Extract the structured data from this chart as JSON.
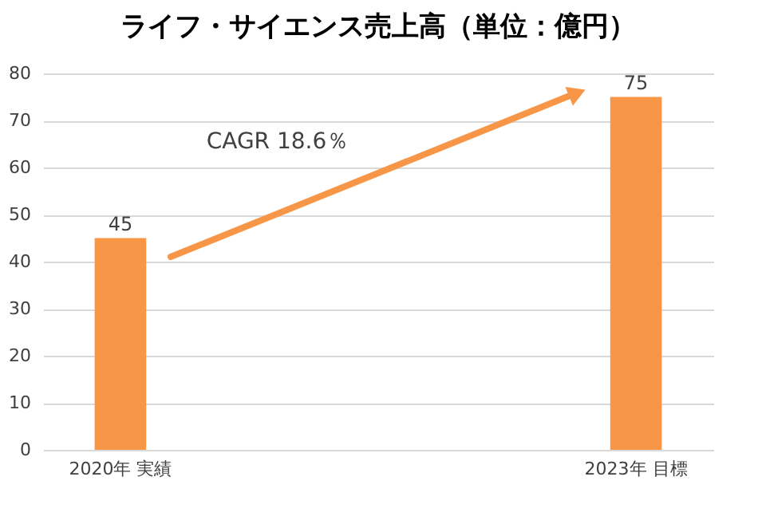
{
  "chart_data": {
    "type": "bar",
    "title": "ライフ・サイエンス売上高（単位：億円）",
    "categories": [
      "2020年  実績",
      "2023年  目標"
    ],
    "values": [
      45,
      75
    ],
    "color": "#f79646",
    "ylim": [
      0,
      80
    ],
    "yticks": [
      0,
      10,
      20,
      30,
      40,
      50,
      60,
      70,
      80
    ],
    "grid": "y",
    "data_labels": true,
    "annotations": [
      "CAGR 18.6％"
    ]
  }
}
